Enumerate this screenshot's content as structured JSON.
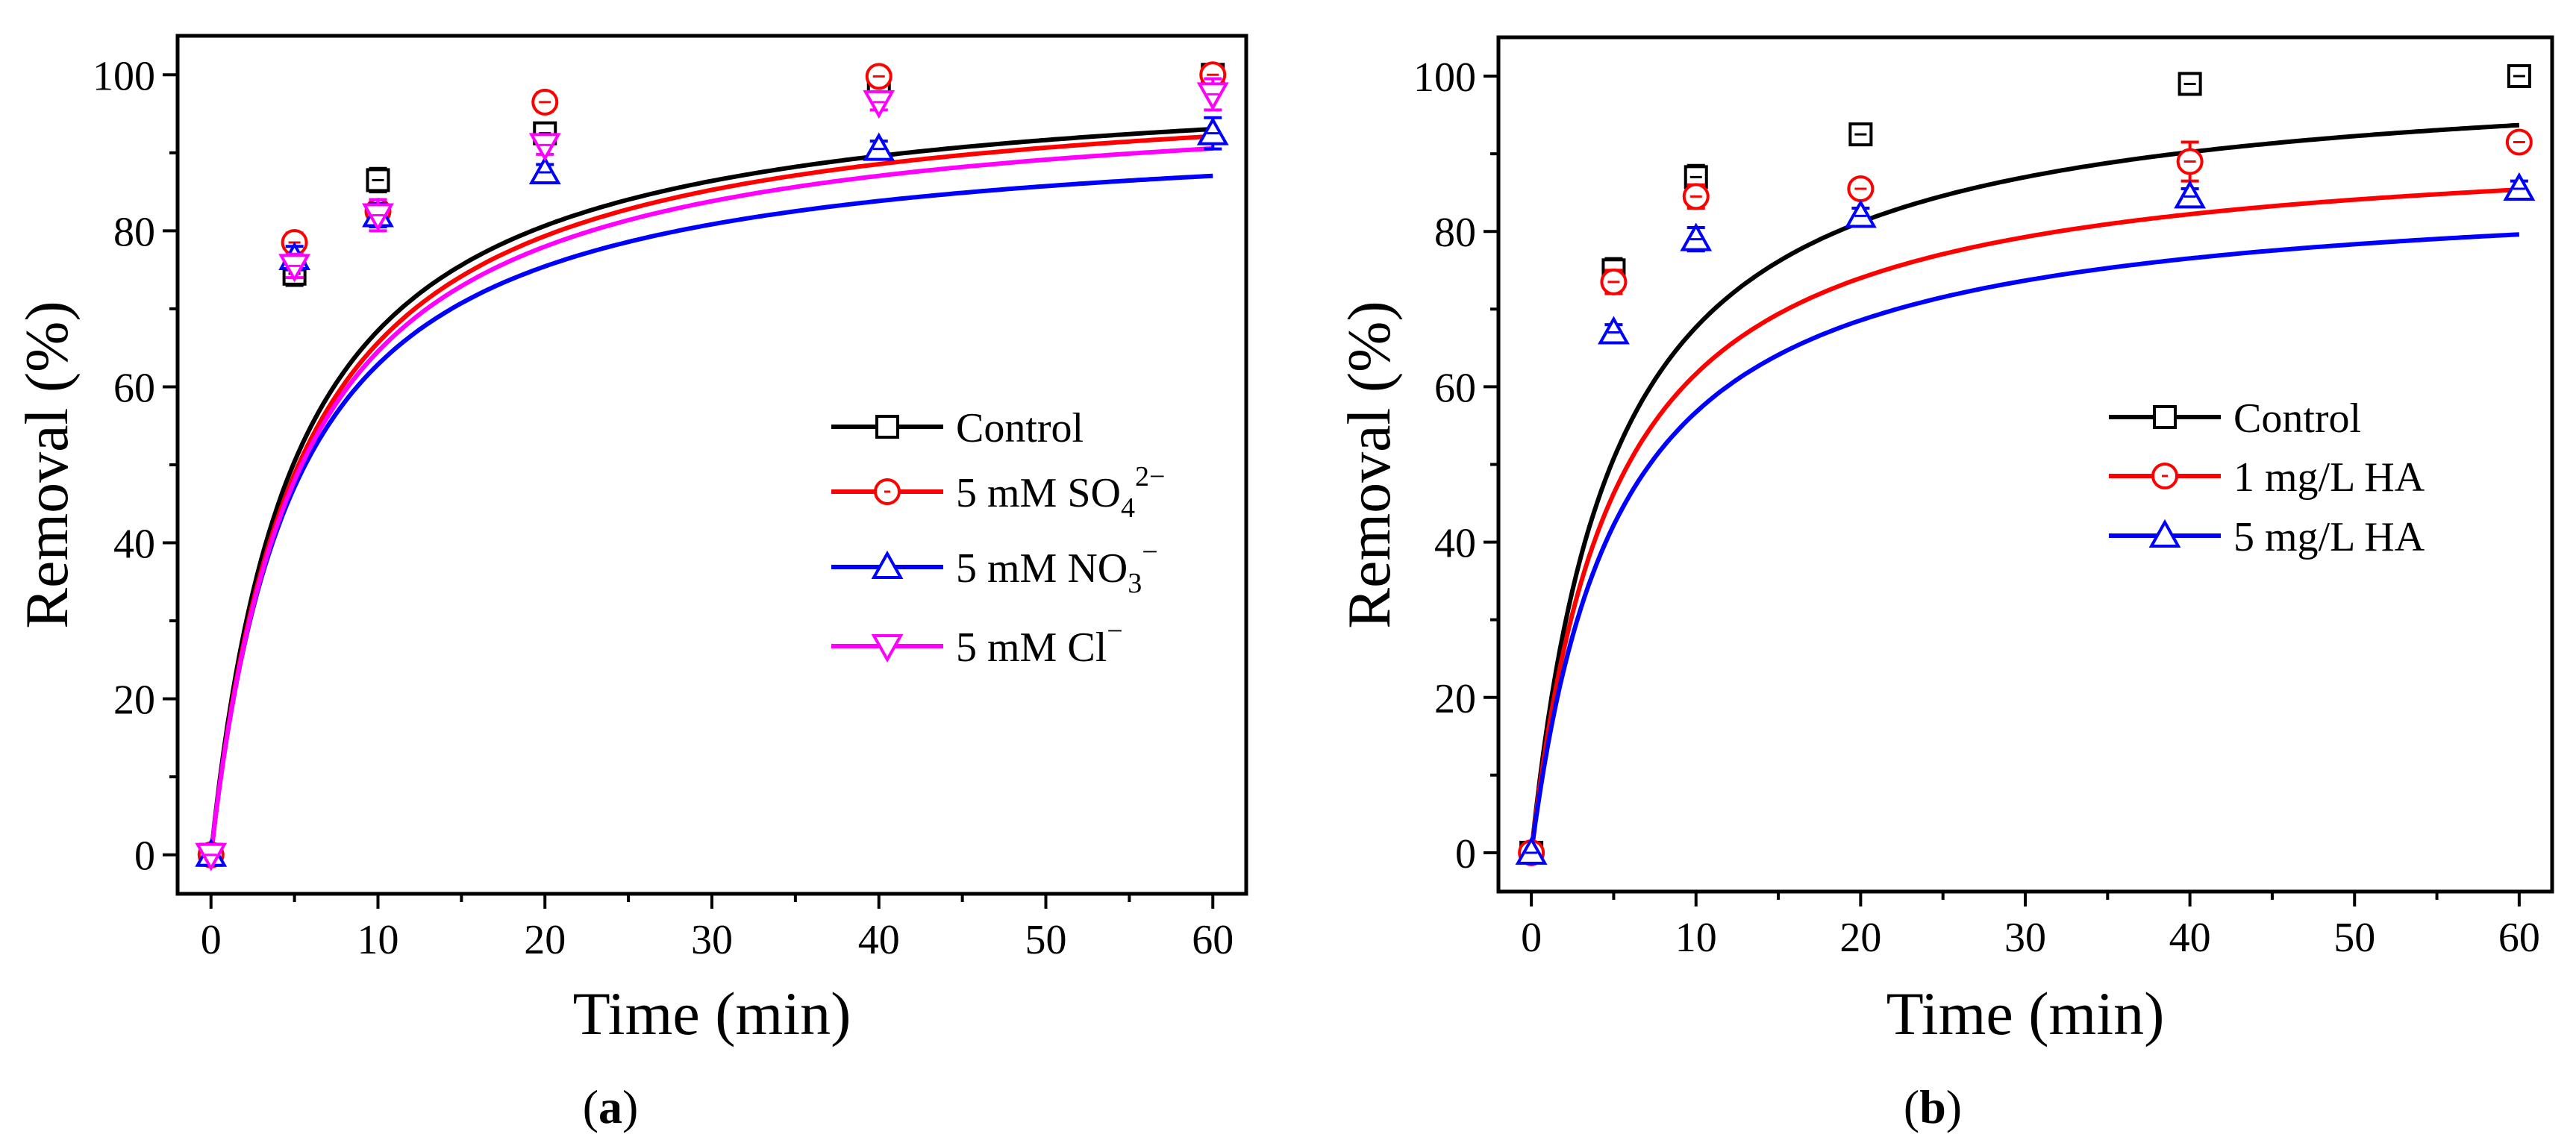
{
  "chart_data": [
    {
      "type": "line",
      "panel_label": "a",
      "title": "",
      "xlabel": "Time (min)",
      "ylabel": "Removal (%)",
      "xlim": [
        -2,
        62
      ],
      "ylim": [
        -5,
        105
      ],
      "xticks": [
        0,
        10,
        20,
        30,
        40,
        50,
        60
      ],
      "yticks": [
        0,
        20,
        40,
        60,
        80,
        100
      ],
      "x": [
        0,
        5,
        10,
        20,
        40,
        60
      ],
      "legend_position": "center-right",
      "series": [
        {
          "name": "Control",
          "legend_main": "Control",
          "legend_sup": "",
          "color": "#000000",
          "marker": "square",
          "values": [
            0,
            74.5,
            86.5,
            92.5,
            98.8,
            100
          ],
          "errors": [
            0,
            1.5,
            1.5,
            1.2,
            1.0,
            0.8
          ],
          "fit": {
            "k": 0.2,
            "qe": 100.8,
            "delay": 0
          }
        },
        {
          "name": "5 mM SO4 2−",
          "legend_main": "5 mM SO",
          "legend_sub": "4",
          "legend_sup": "2−",
          "color": "#ff0000",
          "marker": "circle",
          "values": [
            0,
            78.5,
            82.5,
            96.5,
            99.8,
            100
          ],
          "errors": [
            0,
            1.2,
            1.5,
            1.2,
            0.8,
            0.8
          ],
          "fit": {
            "k": 0.19,
            "qe": 100.2,
            "delay": 3
          }
        },
        {
          "name": "5 mM NO3 −",
          "legend_main": "5 mM NO",
          "legend_sub": "3",
          "legend_sup": "−",
          "color": "#0000ff",
          "marker": "triangle-up",
          "values": [
            0,
            76.5,
            82.0,
            87.5,
            90.5,
            92.5
          ],
          "errors": [
            0,
            1.5,
            1.5,
            1.0,
            1.0,
            2.0
          ],
          "fit": {
            "k": 0.2,
            "qe": 94.3,
            "delay": 0
          }
        },
        {
          "name": "5 mM Cl −",
          "legend_main": "5 mM Cl",
          "legend_sub": "",
          "legend_sup": "−",
          "color": "#ff00ff",
          "marker": "triangle-down",
          "values": [
            0,
            75.5,
            82.0,
            91.0,
            96.5,
            97.5
          ],
          "errors": [
            0,
            1.5,
            2.0,
            1.2,
            1.0,
            2.0
          ],
          "fit": {
            "k": 0.19,
            "qe": 98.5,
            "delay": 0
          }
        }
      ]
    },
    {
      "type": "line",
      "panel_label": "b",
      "title": "",
      "xlabel": "Time (min)",
      "ylabel": "Removal (%)",
      "xlim": [
        -2,
        62
      ],
      "ylim": [
        -5,
        105
      ],
      "xticks": [
        0,
        10,
        20,
        30,
        40,
        50,
        60
      ],
      "yticks": [
        0,
        20,
        40,
        60,
        80,
        100
      ],
      "x": [
        0,
        5,
        10,
        20,
        40,
        60
      ],
      "legend_position": "center-right",
      "series": [
        {
          "name": "Control",
          "legend_main": "Control",
          "legend_sup": "",
          "color": "#000000",
          "marker": "square",
          "values": [
            0,
            75,
            87,
            92.5,
            99,
            100
          ],
          "errors": [
            0,
            1.5,
            1.5,
            1.2,
            1.0,
            0.8
          ],
          "fit": {
            "k": 0.2,
            "qe": 101.5,
            "delay": 0
          }
        },
        {
          "name": "1 mg/L HA",
          "legend_main": "1 mg/L HA",
          "legend_sup": "",
          "color": "#ff0000",
          "marker": "circle",
          "values": [
            0,
            73.5,
            84.5,
            85.5,
            89,
            91.5
          ],
          "errors": [
            0,
            1.5,
            1.5,
            1.0,
            2.5,
            1.0
          ],
          "fit": {
            "k": 0.2,
            "qe": 92.5,
            "delay": 0
          }
        },
        {
          "name": "5 mg/L HA",
          "legend_main": "5 mg/L HA",
          "legend_sup": "",
          "color": "#0000ff",
          "marker": "triangle-up",
          "values": [
            0,
            67,
            79,
            82,
            84.5,
            85.5
          ],
          "errors": [
            0,
            1.0,
            1.5,
            1.0,
            1.0,
            1.0
          ],
          "fit": {
            "k": 0.19,
            "qe": 86.6,
            "delay": 0
          }
        }
      ]
    }
  ]
}
